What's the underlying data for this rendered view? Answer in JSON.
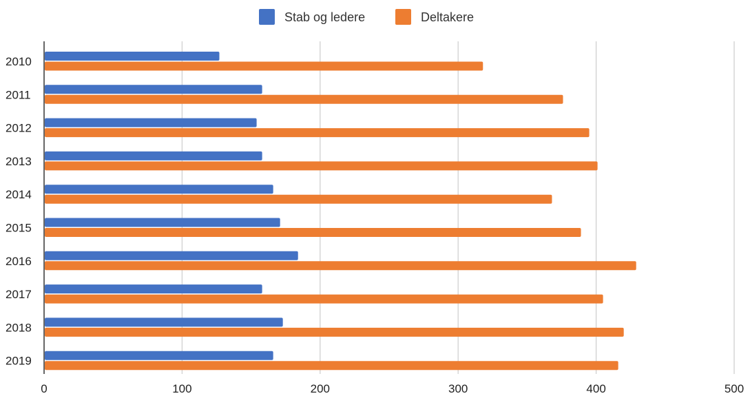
{
  "chart_data": {
    "type": "bar",
    "orientation": "horizontal",
    "title": "",
    "xlabel": "",
    "ylabel": "",
    "categories": [
      "2010",
      "2011",
      "2012",
      "2013",
      "2014",
      "2015",
      "2016",
      "2017",
      "2018",
      "2019"
    ],
    "series": [
      {
        "name": "Stab og ledere",
        "color": "#4472c4",
        "values": [
          127,
          158,
          154,
          158,
          166,
          171,
          184,
          158,
          173,
          166
        ]
      },
      {
        "name": "Deltakere",
        "color": "#ed7d31",
        "values": [
          318,
          376,
          395,
          401,
          368,
          389,
          429,
          405,
          420,
          416
        ]
      }
    ],
    "xlim": [
      0,
      500
    ],
    "xticks": [
      "0",
      "100",
      "200",
      "300",
      "400",
      "500"
    ],
    "grid": true,
    "legend_position": "top-center"
  }
}
